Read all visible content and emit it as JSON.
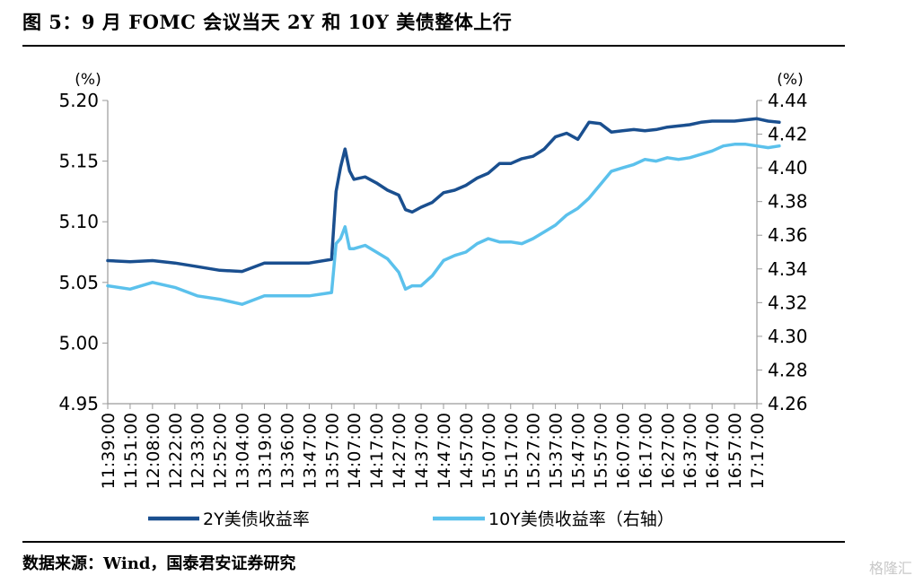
{
  "title": "图 5：9 月  FOMC 会议当天 2Y 和 10Y 美债整体上行",
  "source": "数据来源：Wind，国泰君安证券研究",
  "watermark": "格隆汇",
  "chart_data": {
    "type": "line",
    "title": "",
    "left_unit": "(%)",
    "right_unit": "(%)",
    "left_axis": {
      "ylim": [
        4.95,
        5.2
      ],
      "ticks": [
        "5.20",
        "5.15",
        "5.10",
        "5.05",
        "5.00",
        "4.95"
      ]
    },
    "right_axis": {
      "ylim": [
        4.26,
        4.44
      ],
      "ticks": [
        "4.44",
        "4.42",
        "4.40",
        "4.38",
        "4.36",
        "4.34",
        "4.32",
        "4.30",
        "4.28",
        "4.26"
      ]
    },
    "x_tick_labels": [
      "11:39:00",
      "11:51:00",
      "12:08:00",
      "12:22:00",
      "12:33:00",
      "12:52:00",
      "13:04:00",
      "13:19:00",
      "13:36:00",
      "13:47:00",
      "13:57:00",
      "14:07:00",
      "14:17:00",
      "14:27:00",
      "14:37:00",
      "14:47:00",
      "14:57:00",
      "15:07:00",
      "15:17:00",
      "15:27:00",
      "15:37:00",
      "15:47:00",
      "15:57:00",
      "16:07:00",
      "16:17:00",
      "16:27:00",
      "16:37:00",
      "16:47:00",
      "16:57:00",
      "17:17:00"
    ],
    "grid": false,
    "legend_position": "bottom",
    "series": [
      {
        "name": "2Y美债收益率",
        "axis": "left",
        "color": "#1a4f8f",
        "x": [
          0,
          1,
          2,
          3,
          4,
          5,
          6,
          7,
          8,
          9,
          10,
          10.2,
          10.4,
          10.6,
          10.8,
          11,
          11.5,
          12,
          12.5,
          13,
          13.3,
          13.6,
          14,
          14.5,
          15,
          15.5,
          16,
          16.5,
          17,
          17.5,
          18,
          18.5,
          19,
          19.5,
          20,
          20.5,
          21,
          21.5,
          22,
          22.5,
          23,
          23.5,
          24,
          24.5,
          25,
          25.5,
          26,
          26.5,
          27,
          27.5,
          28,
          28.5,
          29,
          29.5,
          30
        ],
        "values": [
          5.068,
          5.067,
          5.068,
          5.066,
          5.063,
          5.06,
          5.059,
          5.066,
          5.066,
          5.066,
          5.069,
          5.125,
          5.145,
          5.16,
          5.142,
          5.135,
          5.137,
          5.132,
          5.126,
          5.122,
          5.11,
          5.108,
          5.112,
          5.116,
          5.124,
          5.126,
          5.13,
          5.136,
          5.14,
          5.148,
          5.148,
          5.152,
          5.154,
          5.16,
          5.17,
          5.173,
          5.168,
          5.182,
          5.181,
          5.174,
          5.175,
          5.176,
          5.175,
          5.176,
          5.178,
          5.179,
          5.18,
          5.182,
          5.183,
          5.183,
          5.183,
          5.184,
          5.185,
          5.183,
          5.182
        ]
      },
      {
        "name": "10Y美债收益率（右轴）",
        "axis": "right",
        "color": "#5bc1ec",
        "x": [
          0,
          1,
          2,
          3,
          4,
          5,
          6,
          7,
          8,
          9,
          10,
          10.2,
          10.4,
          10.6,
          10.8,
          11,
          11.5,
          12,
          12.5,
          13,
          13.3,
          13.6,
          14,
          14.5,
          15,
          15.5,
          16,
          16.5,
          17,
          17.5,
          18,
          18.5,
          19,
          19.5,
          20,
          20.5,
          21,
          21.5,
          22,
          22.5,
          23,
          23.5,
          24,
          24.5,
          25,
          25.5,
          26,
          26.5,
          27,
          27.5,
          28,
          28.5,
          29,
          29.5,
          30
        ],
        "values": [
          4.33,
          4.328,
          4.332,
          4.329,
          4.324,
          4.322,
          4.319,
          4.324,
          4.324,
          4.324,
          4.326,
          4.355,
          4.358,
          4.365,
          4.352,
          4.352,
          4.354,
          4.35,
          4.346,
          4.338,
          4.328,
          4.33,
          4.33,
          4.336,
          4.345,
          4.348,
          4.35,
          4.355,
          4.358,
          4.356,
          4.356,
          4.355,
          4.358,
          4.362,
          4.366,
          4.372,
          4.376,
          4.382,
          4.39,
          4.398,
          4.4,
          4.402,
          4.405,
          4.404,
          4.406,
          4.405,
          4.406,
          4.408,
          4.41,
          4.413,
          4.414,
          4.414,
          4.413,
          4.412,
          4.413
        ]
      }
    ]
  }
}
